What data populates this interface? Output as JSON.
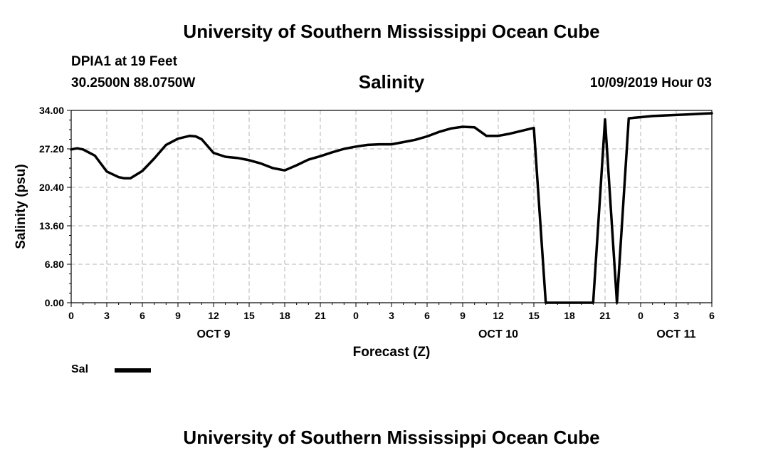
{
  "header": {
    "title": "University of Southern Mississippi Ocean Cube",
    "station": "DPIA1 at 19 Feet",
    "coords": "30.2500N 88.0750W",
    "parameter": "Salinity",
    "valid_time": "10/09/2019 Hour 03"
  },
  "footer": {
    "title": "University of Southern Mississippi Ocean Cube"
  },
  "legend": {
    "label": "Sal",
    "color": "#000000"
  },
  "chart_data": {
    "type": "line",
    "title": "Salinity",
    "xlabel": "Forecast (Z)",
    "ylabel": "Salinity (psu)",
    "xlim": [
      0,
      54
    ],
    "ylim": [
      0,
      34
    ],
    "y_ticks": [
      "0.00",
      "6.80",
      "13.60",
      "20.40",
      "27.20",
      "34.00"
    ],
    "x_tick_labels": [
      "0",
      "3",
      "6",
      "9",
      "12",
      "15",
      "18",
      "21",
      "0",
      "3",
      "6",
      "9",
      "12",
      "15",
      "18",
      "21",
      "0",
      "3",
      "6"
    ],
    "date_labels": [
      {
        "label": "OCT 9",
        "x": 12
      },
      {
        "label": "OCT 10",
        "x": 36
      },
      {
        "label": "OCT 11",
        "x": 51
      }
    ],
    "grid": true,
    "series": [
      {
        "name": "Sal",
        "x": [
          0,
          0.5,
          1,
          2,
          3,
          4,
          4.5,
          5,
          6,
          7,
          8,
          9,
          10,
          10.5,
          11,
          12,
          13,
          14,
          15,
          16,
          17,
          18,
          19,
          20,
          21,
          22,
          23,
          24,
          25,
          26,
          27,
          28,
          29,
          30,
          31,
          32,
          33,
          34,
          35,
          36,
          37,
          38,
          39,
          40,
          41,
          42,
          43,
          44,
          45,
          46,
          47,
          48,
          49,
          50,
          51,
          52,
          53,
          54
        ],
        "y": [
          27.1,
          27.3,
          27.1,
          26.0,
          23.2,
          22.2,
          22.0,
          22.0,
          23.3,
          25.5,
          27.9,
          29.0,
          29.5,
          29.4,
          28.9,
          26.5,
          25.8,
          25.6,
          25.2,
          24.6,
          23.8,
          23.4,
          24.3,
          25.3,
          25.9,
          26.6,
          27.2,
          27.6,
          27.9,
          28.0,
          28.0,
          28.4,
          28.8,
          29.4,
          30.2,
          30.8,
          31.1,
          31.0,
          29.5,
          29.5,
          29.9,
          30.4,
          30.9,
          0.0,
          0.0,
          0.0,
          0.0,
          0.0,
          32.4,
          0.0,
          32.6,
          32.8,
          33.0,
          33.1,
          33.2,
          33.3,
          33.4,
          33.5
        ]
      }
    ]
  }
}
